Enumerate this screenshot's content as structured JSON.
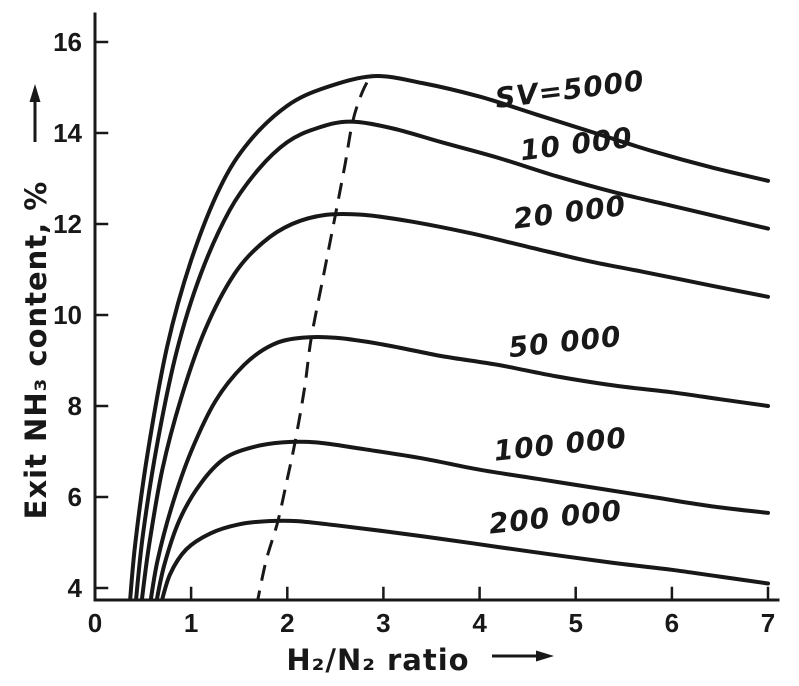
{
  "figure": {
    "background": "#ffffff",
    "ink_color": "#181818"
  },
  "chart_data": {
    "type": "line",
    "title": "",
    "xlabel": "H₂/N₂ ratio",
    "ylabel": "Exit NH₃ content, %",
    "xlim": [
      0,
      7
    ],
    "ylim": [
      4,
      16
    ],
    "x_ticks": [
      0,
      1,
      2,
      3,
      4,
      5,
      6,
      7
    ],
    "y_ticks": [
      4,
      6,
      8,
      10,
      12,
      14,
      16
    ],
    "grid": false,
    "legend": "inline-labels",
    "series": [
      {
        "name": "SV 5000",
        "label": "SV=5000",
        "label_pos": {
          "x": 4.95,
          "y": 14.75,
          "rot": -7
        },
        "points": [
          [
            0.36,
            3.6
          ],
          [
            0.42,
            5.0
          ],
          [
            0.55,
            7.0
          ],
          [
            0.75,
            9.3
          ],
          [
            1.0,
            11.2
          ],
          [
            1.3,
            12.8
          ],
          [
            1.6,
            13.8
          ],
          [
            2.0,
            14.6
          ],
          [
            2.4,
            15.0
          ],
          [
            2.9,
            15.25
          ],
          [
            3.4,
            15.1
          ],
          [
            4.0,
            14.8
          ],
          [
            4.6,
            14.4
          ],
          [
            5.2,
            14.0
          ],
          [
            5.8,
            13.6
          ],
          [
            6.4,
            13.25
          ],
          [
            7.0,
            12.95
          ]
        ]
      },
      {
        "name": "SV 10000",
        "label": "10 000",
        "label_pos": {
          "x": 5.02,
          "y": 13.55,
          "rot": -7
        },
        "points": [
          [
            0.42,
            3.6
          ],
          [
            0.5,
            5.2
          ],
          [
            0.65,
            7.2
          ],
          [
            0.85,
            9.2
          ],
          [
            1.1,
            10.9
          ],
          [
            1.4,
            12.3
          ],
          [
            1.7,
            13.2
          ],
          [
            2.0,
            13.8
          ],
          [
            2.3,
            14.1
          ],
          [
            2.65,
            14.25
          ],
          [
            3.1,
            14.1
          ],
          [
            3.6,
            13.8
          ],
          [
            4.2,
            13.45
          ],
          [
            4.8,
            13.05
          ],
          [
            5.4,
            12.7
          ],
          [
            6.0,
            12.4
          ],
          [
            6.5,
            12.15
          ],
          [
            7.0,
            11.9
          ]
        ]
      },
      {
        "name": "SV 20000",
        "label": "20 000",
        "label_pos": {
          "x": 4.95,
          "y": 12.05,
          "rot": -7
        },
        "points": [
          [
            0.48,
            3.6
          ],
          [
            0.56,
            4.9
          ],
          [
            0.7,
            6.6
          ],
          [
            0.9,
            8.2
          ],
          [
            1.15,
            9.7
          ],
          [
            1.45,
            10.9
          ],
          [
            1.75,
            11.6
          ],
          [
            2.05,
            12.0
          ],
          [
            2.4,
            12.2
          ],
          [
            2.8,
            12.2
          ],
          [
            3.3,
            12.05
          ],
          [
            3.9,
            11.8
          ],
          [
            4.5,
            11.5
          ],
          [
            5.1,
            11.2
          ],
          [
            5.7,
            10.95
          ],
          [
            6.4,
            10.65
          ],
          [
            7.0,
            10.4
          ]
        ]
      },
      {
        "name": "SV 50000",
        "label": "50 000",
        "label_pos": {
          "x": 4.9,
          "y": 9.2,
          "rot": -6
        },
        "points": [
          [
            0.57,
            3.6
          ],
          [
            0.65,
            4.6
          ],
          [
            0.8,
            5.8
          ],
          [
            1.0,
            7.0
          ],
          [
            1.25,
            8.1
          ],
          [
            1.55,
            8.9
          ],
          [
            1.85,
            9.35
          ],
          [
            2.15,
            9.5
          ],
          [
            2.5,
            9.5
          ],
          [
            3.0,
            9.35
          ],
          [
            3.6,
            9.1
          ],
          [
            4.2,
            8.9
          ],
          [
            4.8,
            8.65
          ],
          [
            5.4,
            8.45
          ],
          [
            6.0,
            8.3
          ],
          [
            6.5,
            8.15
          ],
          [
            7.0,
            8.0
          ]
        ]
      },
      {
        "name": "SV 100000",
        "label": "100 000",
        "label_pos": {
          "x": 4.85,
          "y": 6.95,
          "rot": -6
        },
        "points": [
          [
            0.63,
            3.6
          ],
          [
            0.72,
            4.5
          ],
          [
            0.88,
            5.5
          ],
          [
            1.1,
            6.3
          ],
          [
            1.35,
            6.85
          ],
          [
            1.65,
            7.1
          ],
          [
            1.95,
            7.2
          ],
          [
            2.3,
            7.2
          ],
          [
            2.8,
            7.05
          ],
          [
            3.4,
            6.85
          ],
          [
            4.0,
            6.6
          ],
          [
            4.6,
            6.4
          ],
          [
            5.2,
            6.2
          ],
          [
            5.8,
            6.0
          ],
          [
            6.4,
            5.8
          ],
          [
            7.0,
            5.65
          ]
        ]
      },
      {
        "name": "SV 200000",
        "label": "200 000",
        "label_pos": {
          "x": 4.8,
          "y": 5.35,
          "rot": -6
        },
        "points": [
          [
            0.68,
            3.6
          ],
          [
            0.78,
            4.3
          ],
          [
            0.95,
            4.85
          ],
          [
            1.2,
            5.2
          ],
          [
            1.5,
            5.4
          ],
          [
            1.8,
            5.47
          ],
          [
            2.1,
            5.47
          ],
          [
            2.5,
            5.38
          ],
          [
            3.0,
            5.25
          ],
          [
            3.6,
            5.08
          ],
          [
            4.2,
            4.9
          ],
          [
            4.8,
            4.72
          ],
          [
            5.4,
            4.55
          ],
          [
            6.0,
            4.4
          ],
          [
            6.5,
            4.25
          ],
          [
            7.0,
            4.1
          ]
        ]
      }
    ],
    "maxima_locus": {
      "name": "locus of maxima",
      "style": "dashed",
      "points": [
        [
          1.68,
          3.6
        ],
        [
          1.78,
          4.6
        ],
        [
          1.9,
          5.45
        ],
        [
          2.0,
          6.4
        ],
        [
          2.08,
          7.2
        ],
        [
          2.18,
          8.4
        ],
        [
          2.25,
          9.5
        ],
        [
          2.38,
          10.9
        ],
        [
          2.5,
          12.2
        ],
        [
          2.6,
          13.3
        ],
        [
          2.68,
          14.25
        ],
        [
          2.78,
          14.9
        ],
        [
          2.88,
          15.3
        ]
      ]
    }
  }
}
